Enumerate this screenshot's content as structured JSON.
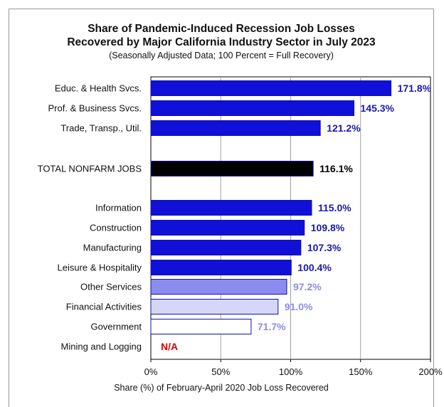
{
  "header": {
    "title_line1": "Share of Pandemic-Induced Recession Job Losses",
    "title_line2": "Recovered by Major California Industry Sector in July 2023",
    "subtitle": "(Seasonally Adjusted Data; 100 Percent = Full Recovery)"
  },
  "chart_data": {
    "type": "bar",
    "orientation": "horizontal",
    "title": "Share of Pandemic-Induced Recession Job Losses Recovered by Major California Industry Sector in July 2023",
    "subtitle": "(Seasonally Adjusted Data; 100 Percent = Full Recovery)",
    "xlabel": "Share (%) of February-April 2020 Job Loss Recovered",
    "ylabel": "",
    "xlim": [
      0,
      200
    ],
    "xticks": [
      0,
      50,
      100,
      150,
      200
    ],
    "xtick_labels": [
      "0%",
      "50%",
      "100%",
      "150%",
      "200%"
    ],
    "grid": "vertical",
    "categories": [
      "Educ. & Health Svcs.",
      "Prof. & Business Svcs.",
      "Trade, Transp., Util.",
      "TOTAL NONFARM JOBS",
      "Information",
      "Construction",
      "Manufacturing",
      "Leisure & Hospitality",
      "Other Services",
      "Financial Activities",
      "Government",
      "Mining and Logging"
    ],
    "values": [
      171.8,
      145.3,
      121.2,
      116.1,
      115.0,
      109.8,
      107.3,
      100.4,
      97.2,
      91.0,
      71.7,
      null
    ],
    "data_labels": [
      "171.8%",
      "145.3%",
      "121.2%",
      "116.1%",
      "115.0%",
      "109.8%",
      "107.3%",
      "100.4%",
      "97.2%",
      "91.0%",
      "71.7%",
      "N/A"
    ],
    "bar_colors": [
      "#1010d8",
      "#1010d8",
      "#1010d8",
      "#000000",
      "#1010d8",
      "#1010d8",
      "#1010d8",
      "#1010d8",
      "#8c8cef",
      "#d6d6fa",
      "#ffffff",
      null
    ],
    "label_colors": [
      "#1a1aa8",
      "#1a1aa8",
      "#1a1aa8",
      "#000000",
      "#1a1aa8",
      "#1a1aa8",
      "#1a1aa8",
      "#1a1aa8",
      "#8c8ce6",
      "#8c8ce6",
      "#8c8ce6",
      "#e00000"
    ]
  }
}
